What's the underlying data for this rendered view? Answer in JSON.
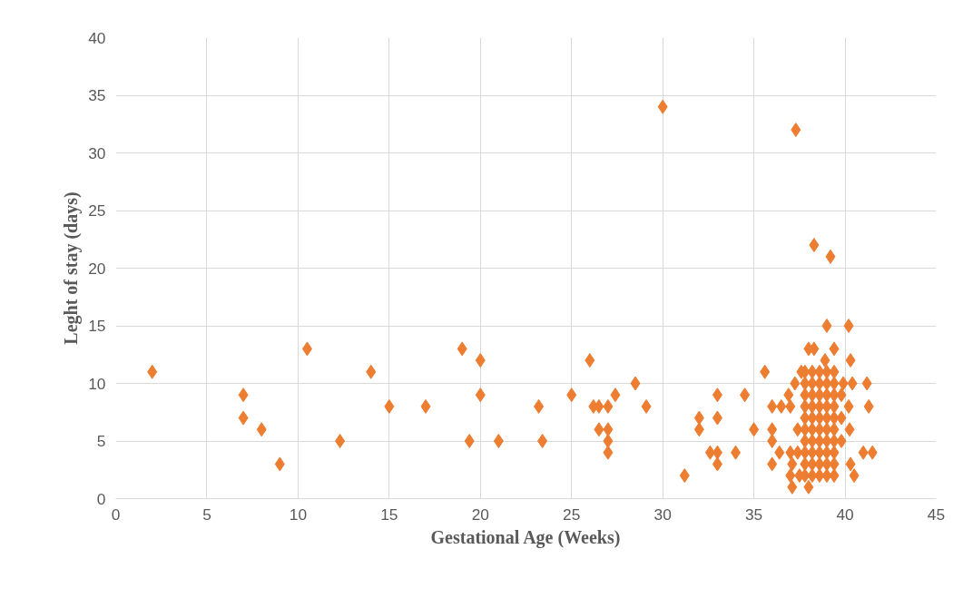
{
  "chart_data": {
    "type": "scatter",
    "xlabel": "Gestational Age (Weeks)",
    "ylabel": "Leght of stay (days)",
    "xlim": [
      0,
      45
    ],
    "xticks": [
      0,
      5,
      10,
      15,
      20,
      25,
      30,
      35,
      40,
      45
    ],
    "ylim": [
      0,
      40
    ],
    "yticks": [
      0,
      5,
      10,
      15,
      20,
      25,
      30,
      35,
      40
    ],
    "grid": true,
    "marker": "diamond",
    "series": [
      {
        "color": "#ed7d31",
        "x": [
          2,
          7,
          7,
          8,
          9,
          10.5,
          12.3,
          14,
          15,
          17,
          19,
          19.4,
          20,
          20,
          21,
          23.2,
          23.4,
          25,
          26,
          26.2,
          26.5,
          26.5,
          27,
          27,
          27,
          27,
          27.4,
          28.5,
          29.1,
          30,
          31.2,
          32,
          32,
          32.6,
          33,
          33,
          33,
          33,
          34,
          34.5,
          35,
          35.6,
          36,
          36,
          36,
          36,
          36.4,
          37.3,
          38.3,
          39.2,
          39,
          40.2,
          38,
          38.3,
          39.4,
          38.9,
          40.3,
          37.6,
          37.25,
          39.9,
          40.4,
          41.2,
          36.9,
          36.5,
          37,
          40.2,
          41.3,
          37.4,
          40.25,
          37,
          37.4,
          41,
          41.5,
          37.1,
          40.3,
          37,
          37.5,
          40.5,
          37.1,
          38,
          39.8,
          39.8,
          39.8,
          37.8,
          37.8,
          37.8,
          37.8,
          37.8,
          37.8,
          37.8,
          37.8,
          37.8,
          37.8,
          38.2,
          38.2,
          38.2,
          38.2,
          38.2,
          38.2,
          38.2,
          38.2,
          38.2,
          38.2,
          38.6,
          38.6,
          38.6,
          38.6,
          38.6,
          38.6,
          38.6,
          38.6,
          38.6,
          38.6,
          39,
          39,
          39,
          39,
          39,
          39,
          39,
          39,
          39,
          39,
          39.4,
          39.4,
          39.4,
          39.4,
          39.4,
          39.4,
          39.4,
          39.4,
          39.4,
          39.4
        ],
        "values": [
          11,
          9,
          7,
          6,
          3,
          13,
          5,
          11,
          8,
          8,
          13,
          5,
          12,
          9,
          5,
          8,
          5,
          9,
          12,
          8,
          8,
          6,
          8,
          6,
          5,
          4,
          9,
          10,
          8,
          34,
          2,
          7,
          6,
          4,
          9,
          7,
          4,
          3,
          4,
          9,
          6,
          11,
          8,
          6,
          5,
          3,
          4,
          32,
          22,
          21,
          15,
          15,
          13,
          13,
          13,
          12,
          12,
          11,
          10,
          10,
          10,
          10,
          9,
          8,
          8,
          8,
          8,
          6,
          6,
          4,
          4,
          4,
          4,
          3,
          3,
          2,
          2,
          2,
          1,
          1,
          5,
          7,
          9,
          2,
          3,
          4,
          5,
          6,
          7,
          8,
          9,
          10,
          11,
          2,
          3,
          4,
          5,
          6,
          7,
          8,
          9,
          10,
          11,
          2,
          3,
          4,
          5,
          6,
          7,
          8,
          9,
          10,
          11,
          2,
          3,
          4,
          5,
          6,
          7,
          8,
          9,
          10,
          11,
          2,
          3,
          4,
          5,
          6,
          7,
          8,
          9,
          10,
          11
        ]
      }
    ]
  }
}
